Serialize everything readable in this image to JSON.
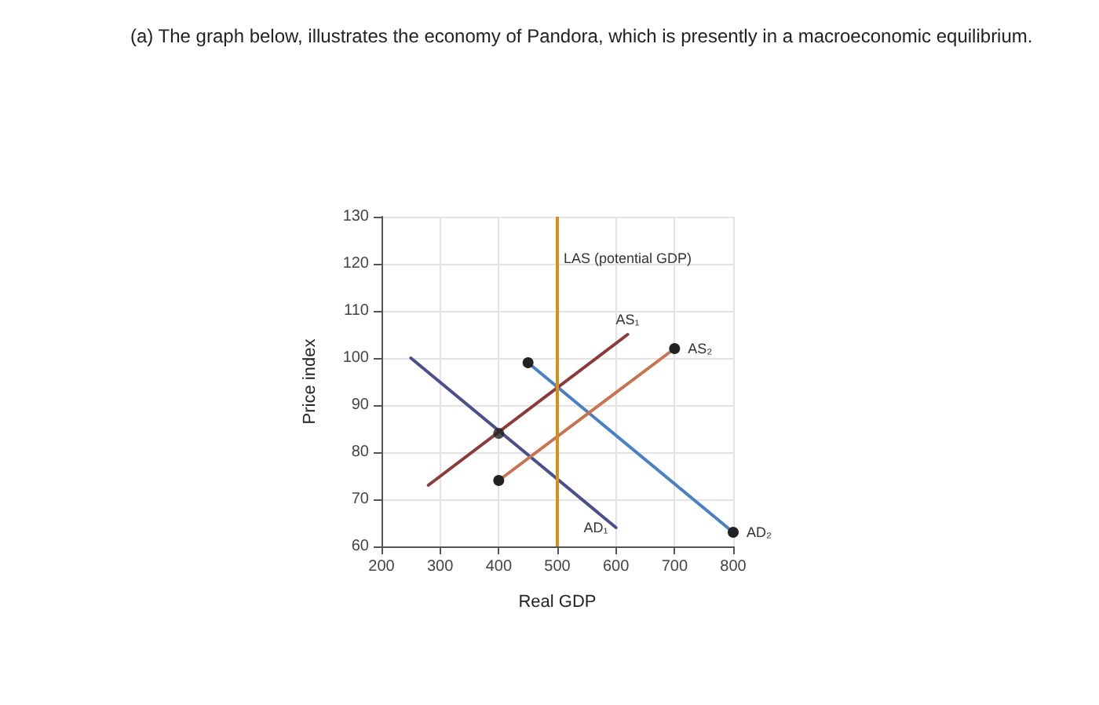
{
  "chart_data": {
    "type": "line",
    "title": "(a) The graph below, illustrates the economy of Pandora, which is presently in a macroeconomic equilibrium.",
    "xlabel": "Real GDP",
    "ylabel": "Price index",
    "xlim": [
      200,
      800
    ],
    "xticks": [
      200,
      300,
      400,
      500,
      600,
      700,
      800
    ],
    "ylim": [
      60,
      130
    ],
    "yticks": [
      60,
      70,
      80,
      90,
      100,
      110,
      120,
      130
    ],
    "grid": true,
    "legend": false,
    "series": [
      {
        "name": "AD₁",
        "color": "#4b4f8e",
        "x": [
          250,
          600
        ],
        "values": [
          100,
          64
        ],
        "marker": "none"
      },
      {
        "name": "AD₂",
        "color": "#4a80c4",
        "x": [
          450,
          800
        ],
        "values": [
          99,
          63
        ],
        "marker": "circle"
      },
      {
        "name": "AS₁",
        "color": "#8c3b3b",
        "x": [
          280,
          620
        ],
        "values": [
          73,
          105
        ],
        "marker": "none"
      },
      {
        "name": "AS₂",
        "color": "#c9744e",
        "x": [
          400,
          700
        ],
        "values": [
          74,
          102
        ],
        "marker": "circle"
      },
      {
        "type": "scatter",
        "color": "#222222",
        "x": [
          400
        ],
        "values": [
          84
        ],
        "marker": "circle"
      }
    ],
    "ref_lines": [
      {
        "axis": "x",
        "value": 500,
        "label": "LAS (potential GDP)",
        "color": "#d4901e"
      }
    ]
  }
}
